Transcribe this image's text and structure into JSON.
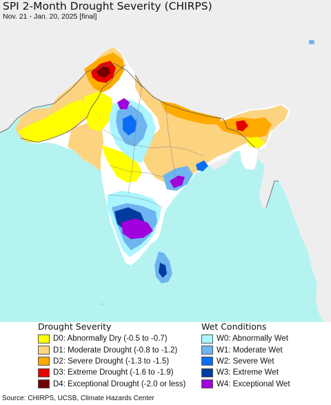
{
  "title": "SPI 2-Month Drought Severity (CHIRPS)",
  "subtitle": "Nov. 21 - Jan. 20, 2025 [final]",
  "colors": {
    "ocean": "#b5f3f1",
    "land_outside": "#efeeef",
    "no_drought": "#ffffff",
    "border_line": "#555555"
  },
  "legend": {
    "drought": {
      "heading": "Drought Severity",
      "items": [
        {
          "code": "D0",
          "label": "D0: Abnormally Dry (-0.5 to -0.7)",
          "color": "#ffff00"
        },
        {
          "code": "D1",
          "label": "D1: Moderate Drought (-0.8 to -1.2)",
          "color": "#fcd37f"
        },
        {
          "code": "D2",
          "label": "D2: Severe Drought (-1.3 to -1.5)",
          "color": "#ffaa00"
        },
        {
          "code": "D3",
          "label": "D3: Extreme Drought (-1.6 to -1.9)",
          "color": "#e60000"
        },
        {
          "code": "D4",
          "label": "D4: Exceptional Drought (-2.0 or less)",
          "color": "#730000"
        }
      ]
    },
    "wet": {
      "heading": "Wet Conditions",
      "items": [
        {
          "code": "W0",
          "label": "W0: Abnormally Wet",
          "color": "#aaf5ff"
        },
        {
          "code": "W1",
          "label": "W1: Moderate Wet",
          "color": "#6eb4f0"
        },
        {
          "code": "W2",
          "label": "W2: Severe Wet",
          "color": "#0a6ef5"
        },
        {
          "code": "W3",
          "label": "W3: Extreme Wet",
          "color": "#003ca0"
        },
        {
          "code": "W4",
          "label": "W4: Exceptional Wet",
          "color": "#a000dc"
        }
      ]
    }
  },
  "footer": {
    "source": "Source: CHIRPS, UCSB, Climate Hazards Center"
  }
}
